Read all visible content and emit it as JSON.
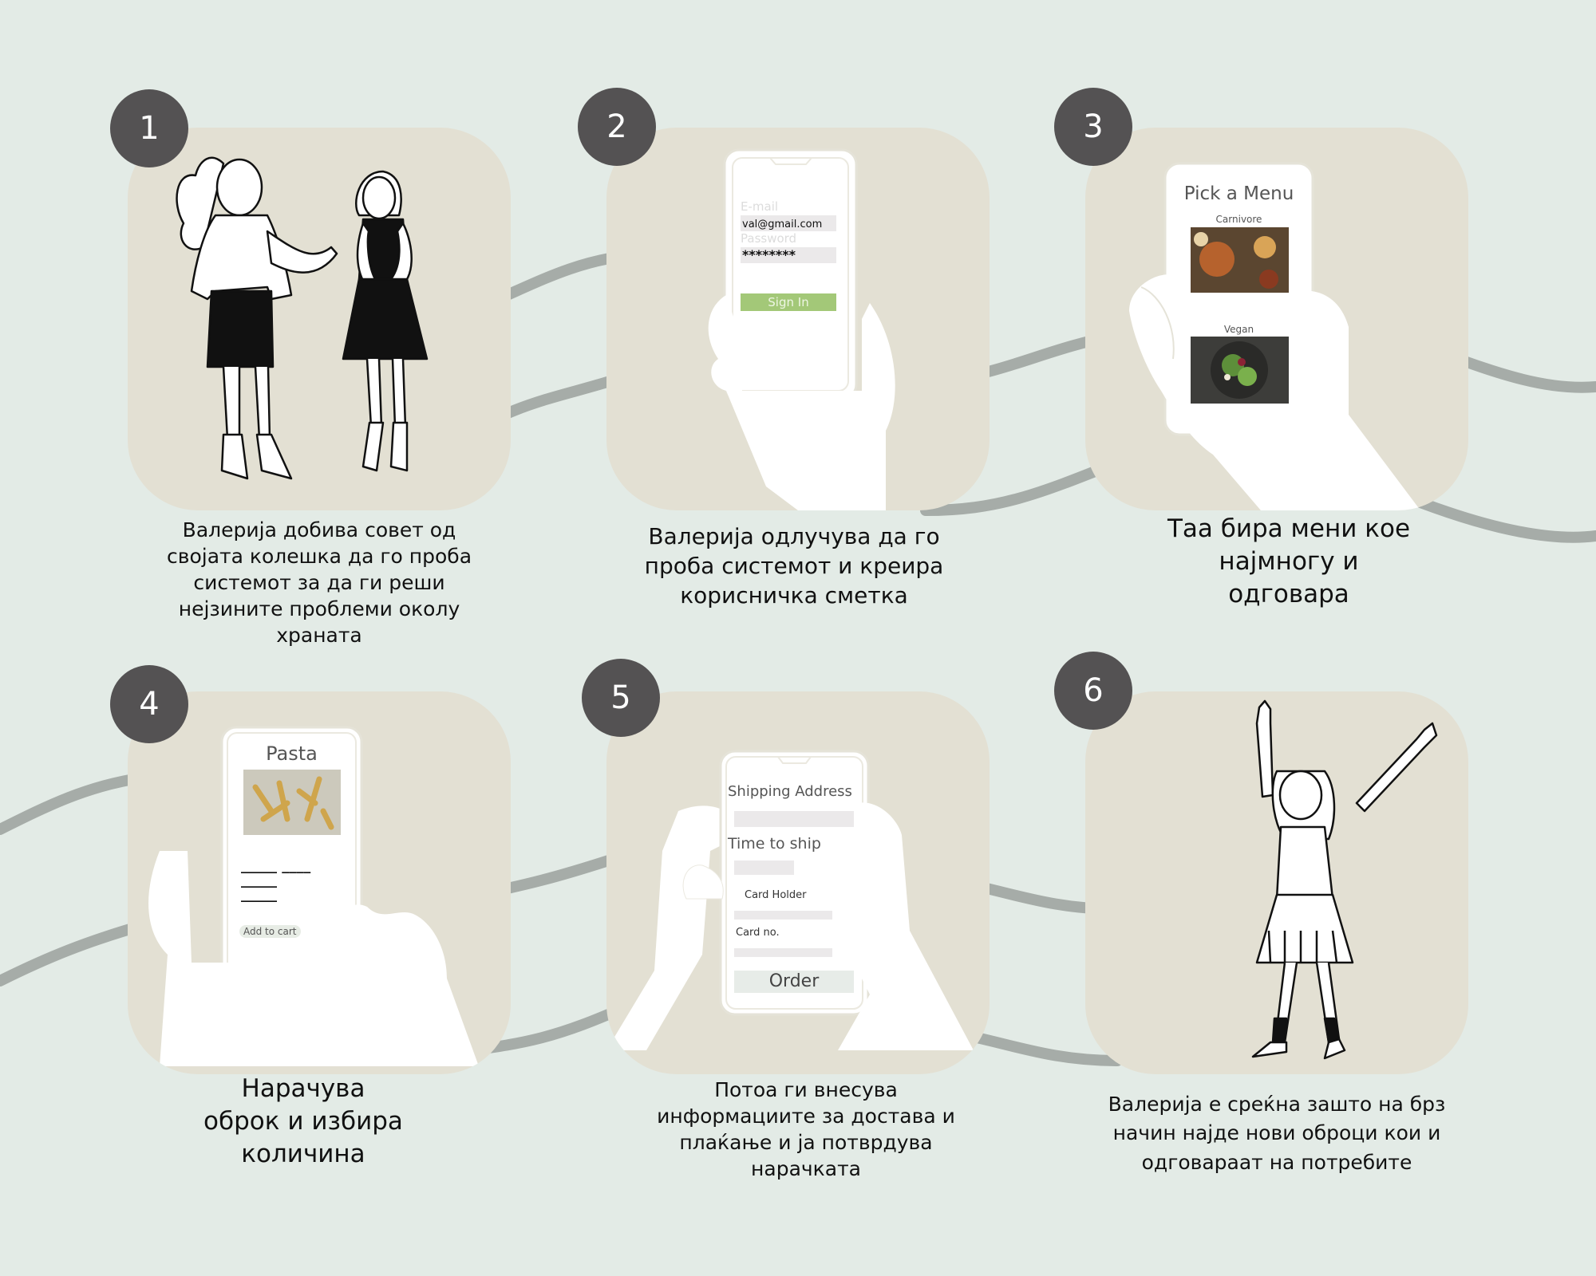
{
  "steps": [
    {
      "number": "1",
      "caption_lines": [
        "Валерија добива совет од",
        "својата колешка да го проба",
        "системот за да ги реши",
        "нејзините проблеми околу",
        "храната"
      ]
    },
    {
      "number": "2",
      "caption_lines": [
        "Валерија одлучува да го",
        "проба системот и креира",
        "корисничка сметка"
      ]
    },
    {
      "number": "3",
      "caption_lines": [
        "Таа бира мени кое",
        "најмногу и",
        "одговара"
      ]
    },
    {
      "number": "4",
      "caption_lines": [
        "Нарачува",
        "оброк и избира",
        "количина"
      ]
    },
    {
      "number": "5",
      "caption_lines": [
        "Потоа ги внесува",
        "информациите за достава и",
        "плаќање и ја потврдува",
        "нарачката"
      ]
    },
    {
      "number": "6",
      "caption_lines": [
        "Валерија е среќна зашто на брз",
        "начин најде нови оброци кои и",
        "одговараат на потребите"
      ]
    }
  ],
  "login_screen": {
    "email_label": "E-mail",
    "email_value": "val@gmail.com",
    "password_label": "Password",
    "password_value": "********",
    "sign_in_label": "Sign In"
  },
  "menu_screen": {
    "title": "Pick a Menu",
    "option_1": "Carnivore",
    "option_2": "Vegan"
  },
  "dish_screen": {
    "title": "Pasta",
    "lines": [
      "_____ ____",
      "_____",
      "_____"
    ],
    "add_to_cart_label": "Add to cart"
  },
  "order_screen": {
    "shipping_label": "Shipping Address",
    "time_label": "Time to ship",
    "card_holder_label": "Card Holder",
    "card_no_label": "Card no.",
    "order_label": "Order"
  },
  "colors": {
    "background": "#e3ebe6",
    "card": "#e3e0d3",
    "badge": "#545253",
    "sign_in_button": "#a3c878",
    "connector": "#a6aca8"
  }
}
